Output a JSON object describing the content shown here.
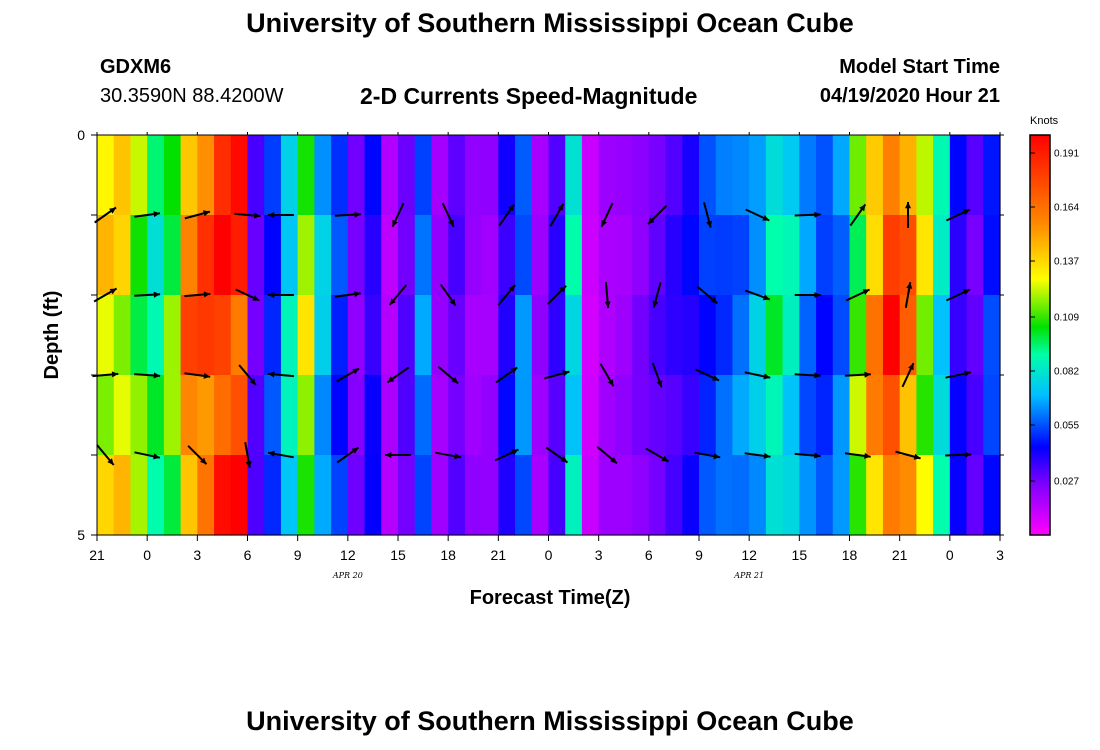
{
  "header": {
    "title": "University of Southern Mississippi Ocean Cube",
    "station": "GDXM6",
    "coordinates": "30.3590N 88.4200W",
    "product": "2-D Currents Speed-Magnitude",
    "start_label": "Model Start Time",
    "start_value": "04/19/2020 Hour 21"
  },
  "footer": {
    "title": "University of Southern Mississippi Ocean Cube"
  },
  "chart_data": {
    "type": "heatmap",
    "title": "2-D Currents Speed-Magnitude",
    "xlabel": "Forecast Time(Z)",
    "ylabel": "Depth (ft)",
    "x_ticks": [
      "21",
      "0",
      "3",
      "6",
      "9",
      "12",
      "15",
      "18",
      "21",
      "0",
      "3",
      "6",
      "9",
      "12",
      "15",
      "18",
      "21",
      "0",
      "3"
    ],
    "x_range_hours": [
      0,
      54
    ],
    "date_labels": [
      {
        "text": "APR 20",
        "hour": 15
      },
      {
        "text": "APR 21",
        "hour": 39
      }
    ],
    "y_ticks": [
      "0",
      "5"
    ],
    "y_range_ft": [
      0,
      5
    ],
    "depth_layers_ft": [
      0.5,
      1.5,
      2.5,
      3.5,
      4.5
    ],
    "colorbar": {
      "units": "Knots",
      "range": [
        0.0,
        0.2
      ],
      "tick_values": [
        0.027,
        0.055,
        0.082,
        0.109,
        0.137,
        0.164,
        0.191
      ],
      "tick_labels": [
        "0.027",
        "0.055",
        "0.082",
        "0.109",
        "0.137",
        "0.164",
        "0.191"
      ]
    },
    "speed_profile_knots": [
      0.13,
      0.13,
      0.11,
      0.09,
      0.11,
      0.16,
      0.17,
      0.185,
      0.18,
      0.03,
      0.05,
      0.08,
      0.12,
      0.07,
      0.05,
      0.025,
      0.04,
      0.015,
      0.03,
      0.06,
      0.02,
      0.03,
      0.02,
      0.02,
      0.04,
      0.06,
      0.02,
      0.035,
      0.08,
      0.01,
      0.018,
      0.02,
      0.025,
      0.03,
      0.035,
      0.04,
      0.05,
      0.055,
      0.06,
      0.07,
      0.09,
      0.08,
      0.06,
      0.05,
      0.06,
      0.11,
      0.15,
      0.18,
      0.16,
      0.12,
      0.08,
      0.04,
      0.03,
      0.05
    ],
    "arrow_columns": [
      {
        "hour": 0.5,
        "rows": [
          {
            "depth": 1.0,
            "angle": -35
          },
          {
            "depth": 2.0,
            "angle": -30
          },
          {
            "depth": 3.0,
            "angle": -5
          },
          {
            "depth": 4.0,
            "angle": 50
          }
        ]
      },
      {
        "hour": 3.0,
        "rows": [
          {
            "depth": 1.0,
            "angle": -8
          },
          {
            "depth": 2.0,
            "angle": -3
          },
          {
            "depth": 3.0,
            "angle": 4
          },
          {
            "depth": 4.0,
            "angle": 12
          }
        ]
      },
      {
        "hour": 6.0,
        "rows": [
          {
            "depth": 1.0,
            "angle": -15
          },
          {
            "depth": 2.0,
            "angle": -5
          },
          {
            "depth": 3.0,
            "angle": 8
          },
          {
            "depth": 4.0,
            "angle": 45
          }
        ]
      },
      {
        "hour": 9.0,
        "rows": [
          {
            "depth": 1.0,
            "angle": 5
          },
          {
            "depth": 2.0,
            "angle": 25
          },
          {
            "depth": 3.0,
            "angle": 50
          },
          {
            "depth": 4.0,
            "angle": 80
          }
        ]
      },
      {
        "hour": 11.0,
        "rows": [
          {
            "depth": 1.0,
            "angle": 180
          },
          {
            "depth": 2.0,
            "angle": 180
          },
          {
            "depth": 3.0,
            "angle": 185
          },
          {
            "depth": 4.0,
            "angle": 190
          }
        ]
      },
      {
        "hour": 15.0,
        "rows": [
          {
            "depth": 1.0,
            "angle": -3
          },
          {
            "depth": 2.0,
            "angle": -8
          },
          {
            "depth": 3.0,
            "angle": -30
          },
          {
            "depth": 4.0,
            "angle": -35
          }
        ]
      },
      {
        "hour": 18.0,
        "rows": [
          {
            "depth": 1.0,
            "angle": 115
          },
          {
            "depth": 2.0,
            "angle": 130
          },
          {
            "depth": 3.0,
            "angle": 145
          },
          {
            "depth": 4.0,
            "angle": 180
          }
        ]
      },
      {
        "hour": 21.0,
        "rows": [
          {
            "depth": 1.0,
            "angle": 65
          },
          {
            "depth": 2.0,
            "angle": 55
          },
          {
            "depth": 3.0,
            "angle": 40
          },
          {
            "depth": 4.0,
            "angle": 10
          }
        ]
      },
      {
        "hour": 24.5,
        "rows": [
          {
            "depth": 1.0,
            "angle": -55
          },
          {
            "depth": 2.0,
            "angle": -50
          },
          {
            "depth": 3.0,
            "angle": -35
          },
          {
            "depth": 4.0,
            "angle": -25
          }
        ]
      },
      {
        "hour": 27.5,
        "rows": [
          {
            "depth": 1.0,
            "angle": -60
          },
          {
            "depth": 2.0,
            "angle": -45
          },
          {
            "depth": 3.0,
            "angle": -15
          },
          {
            "depth": 4.0,
            "angle": 35
          }
        ]
      },
      {
        "hour": 30.5,
        "rows": [
          {
            "depth": 1.0,
            "angle": 115
          },
          {
            "depth": 2.0,
            "angle": 85
          },
          {
            "depth": 3.0,
            "angle": 60
          },
          {
            "depth": 4.0,
            "angle": 40
          }
        ]
      },
      {
        "hour": 33.5,
        "rows": [
          {
            "depth": 1.0,
            "angle": 135
          },
          {
            "depth": 2.0,
            "angle": 105
          },
          {
            "depth": 3.0,
            "angle": 70
          },
          {
            "depth": 4.0,
            "angle": 30
          }
        ]
      },
      {
        "hour": 36.5,
        "rows": [
          {
            "depth": 1.0,
            "angle": 75
          },
          {
            "depth": 2.0,
            "angle": 40
          },
          {
            "depth": 3.0,
            "angle": 25
          },
          {
            "depth": 4.0,
            "angle": 10
          }
        ]
      },
      {
        "hour": 39.5,
        "rows": [
          {
            "depth": 1.0,
            "angle": 25
          },
          {
            "depth": 2.0,
            "angle": 20
          },
          {
            "depth": 3.0,
            "angle": 12
          },
          {
            "depth": 4.0,
            "angle": 8
          }
        ]
      },
      {
        "hour": 42.5,
        "rows": [
          {
            "depth": 1.0,
            "angle": -2
          },
          {
            "depth": 2.0,
            "angle": 0
          },
          {
            "depth": 3.0,
            "angle": 3
          },
          {
            "depth": 4.0,
            "angle": 5
          }
        ]
      },
      {
        "hour": 45.5,
        "rows": [
          {
            "depth": 1.0,
            "angle": -55
          },
          {
            "depth": 2.0,
            "angle": -25
          },
          {
            "depth": 3.0,
            "angle": -3
          },
          {
            "depth": 4.0,
            "angle": 8
          }
        ]
      },
      {
        "hour": 48.5,
        "rows": [
          {
            "depth": 1.0,
            "angle": -90
          },
          {
            "depth": 2.0,
            "angle": -80
          },
          {
            "depth": 3.0,
            "angle": -65
          },
          {
            "depth": 4.0,
            "angle": 15
          }
        ]
      },
      {
        "hour": 51.5,
        "rows": [
          {
            "depth": 1.0,
            "angle": -25
          },
          {
            "depth": 2.0,
            "angle": -25
          },
          {
            "depth": 3.0,
            "angle": -12
          },
          {
            "depth": 4.0,
            "angle": -2
          }
        ]
      }
    ]
  }
}
